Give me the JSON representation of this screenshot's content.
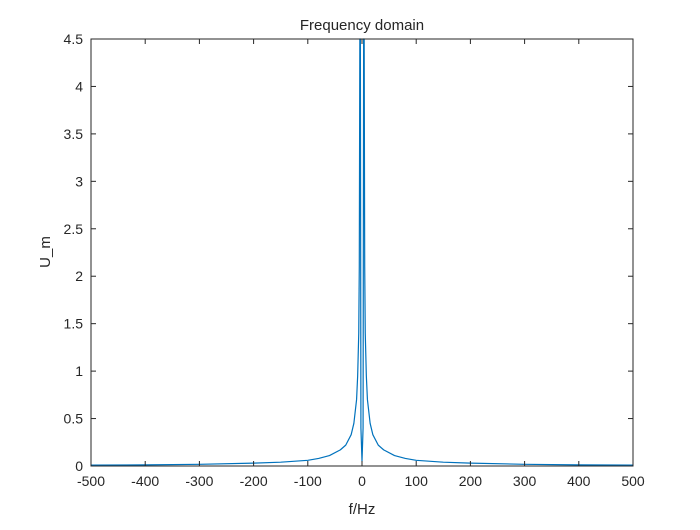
{
  "chart_data": {
    "type": "line",
    "title": "Frequency domain",
    "xlabel": "f/Hz",
    "ylabel": "U_m",
    "xlim": [
      -500,
      500
    ],
    "ylim": [
      0,
      4.5
    ],
    "xticks": [
      "-500",
      "-400",
      "-300",
      "-200",
      "-100",
      "0",
      "100",
      "200",
      "300",
      "400",
      "500"
    ],
    "xtick_values": [
      -500,
      -400,
      -300,
      -200,
      -100,
      0,
      100,
      200,
      300,
      400,
      500
    ],
    "yticks": [
      "0",
      "0.5",
      "1",
      "1.5",
      "2",
      "2.5",
      "3",
      "3.5",
      "4",
      "4.5"
    ],
    "ytick_values": [
      0,
      0.5,
      1,
      1.5,
      2,
      2.5,
      3,
      3.5,
      4,
      4.5
    ],
    "grid": false,
    "line_color": "#0072bd",
    "series": [
      {
        "x": [
          -500,
          -400,
          -300,
          -200,
          -150,
          -100,
          -80,
          -60,
          -40,
          -30,
          -20,
          -15,
          -10,
          -8,
          -6,
          -5,
          -4,
          -3,
          -2,
          0,
          2,
          3,
          4,
          5,
          6,
          8,
          10,
          15,
          20,
          30,
          40,
          60,
          80,
          100,
          150,
          200,
          300,
          400,
          500
        ],
        "y": [
          0.01,
          0.012,
          0.018,
          0.03,
          0.04,
          0.06,
          0.08,
          0.11,
          0.17,
          0.22,
          0.33,
          0.45,
          0.7,
          0.95,
          1.4,
          2.1,
          4.5,
          4.5,
          0.4,
          0.05,
          0.4,
          4.5,
          4.5,
          2.1,
          1.4,
          0.95,
          0.7,
          0.45,
          0.33,
          0.22,
          0.17,
          0.11,
          0.08,
          0.06,
          0.04,
          0.03,
          0.018,
          0.012,
          0.01
        ]
      }
    ]
  }
}
